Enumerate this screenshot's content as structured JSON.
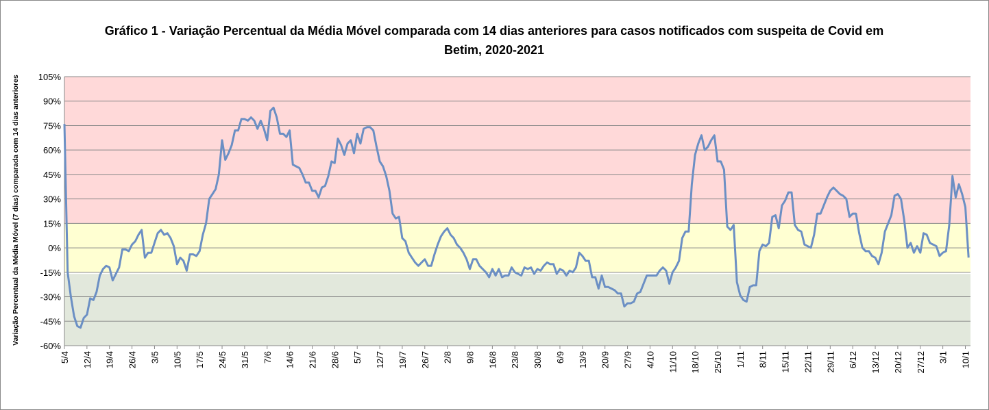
{
  "chart_data": {
    "type": "line",
    "title": "Gráfico 1 - Variação Percentual da Média Móvel comparada com 14 dias anteriores para casos notificados com suspeita de Covid em Betim, 2020-2021",
    "y_label": "Variação Percentual da Média Móvel (7 dias) comparada com 14 dias anteriores",
    "ylim": [
      -60,
      105
    ],
    "yticks": [
      {
        "value": -60,
        "label": "-60%"
      },
      {
        "value": -45,
        "label": "-45%"
      },
      {
        "value": -30,
        "label": "-30%"
      },
      {
        "value": -15,
        "label": "-15%"
      },
      {
        "value": 0,
        "label": "0%"
      },
      {
        "value": 15,
        "label": "15%"
      },
      {
        "value": 30,
        "label": "30%"
      },
      {
        "value": 45,
        "label": "45%"
      },
      {
        "value": 60,
        "label": "60%"
      },
      {
        "value": 75,
        "label": "75%"
      },
      {
        "value": 90,
        "label": "90%"
      },
      {
        "value": 105,
        "label": "105%"
      }
    ],
    "grid": true,
    "bands": [
      {
        "from": 15,
        "to": 105,
        "color": "#ffd9d9"
      },
      {
        "from": -15,
        "to": 15,
        "color": "#ffffd2"
      },
      {
        "from": -60,
        "to": -16,
        "color": "#e2e8dc"
      }
    ],
    "categories": [
      "5/4",
      null,
      null,
      null,
      null,
      null,
      null,
      "12/4",
      null,
      null,
      null,
      null,
      null,
      null,
      "19/4",
      null,
      null,
      null,
      null,
      null,
      null,
      "26/4",
      null,
      null,
      null,
      null,
      null,
      null,
      "3/5",
      null,
      null,
      null,
      null,
      null,
      null,
      "10/5",
      null,
      null,
      null,
      null,
      null,
      null,
      "17/5",
      null,
      null,
      null,
      null,
      null,
      null,
      "24/5",
      null,
      null,
      null,
      null,
      null,
      null,
      "31/5",
      null,
      null,
      null,
      null,
      null,
      null,
      "7/6",
      null,
      null,
      null,
      null,
      null,
      null,
      "14/6",
      null,
      null,
      null,
      null,
      null,
      null,
      "21/6",
      null,
      null,
      null,
      null,
      null,
      null,
      "28/6",
      null,
      null,
      null,
      null,
      null,
      null,
      "5/7",
      null,
      null,
      null,
      null,
      null,
      null,
      "12/7",
      null,
      null,
      null,
      null,
      null,
      null,
      "19/7",
      null,
      null,
      null,
      null,
      null,
      null,
      "26/7",
      null,
      null,
      null,
      null,
      null,
      null,
      "2/8",
      null,
      null,
      null,
      null,
      null,
      null,
      "9/8",
      null,
      null,
      null,
      null,
      null,
      null,
      "16/8",
      null,
      null,
      null,
      null,
      null,
      null,
      "23/8",
      null,
      null,
      null,
      null,
      null,
      null,
      "30/8",
      null,
      null,
      null,
      null,
      null,
      null,
      "6/9",
      null,
      null,
      null,
      null,
      null,
      null,
      "13/9",
      null,
      null,
      null,
      null,
      null,
      null,
      "20/9",
      null,
      null,
      null,
      null,
      null,
      null,
      "27/9",
      null,
      null,
      null,
      null,
      null,
      null,
      "4/10",
      null,
      null,
      null,
      null,
      null,
      null,
      "11/10",
      null,
      null,
      null,
      null,
      null,
      null,
      "18/10",
      null,
      null,
      null,
      null,
      null,
      null,
      "25/10",
      null,
      null,
      null,
      null,
      null,
      null,
      "1/11",
      null,
      null,
      null,
      null,
      null,
      null,
      "8/11",
      null,
      null,
      null,
      null,
      null,
      null,
      "15/11",
      null,
      null,
      null,
      null,
      null,
      null,
      "22/11",
      null,
      null,
      null,
      null,
      null,
      null,
      "29/11",
      null,
      null,
      null,
      null,
      null,
      null,
      "6/12",
      null,
      null,
      null,
      null,
      null,
      null,
      "13/12",
      null,
      null,
      null,
      null,
      null,
      null,
      "20/12",
      null,
      null,
      null,
      null,
      null,
      null,
      "27/12",
      null,
      null,
      null,
      null,
      null,
      null,
      "3/1",
      null,
      null,
      null,
      null,
      null,
      null,
      "10/1",
      null
    ],
    "series": [
      {
        "color": "#6b8fc4",
        "values": [
          76,
          -15,
          -30,
          -42,
          -48,
          -49,
          -43,
          -41,
          -31,
          -32,
          -27,
          -17,
          -13,
          -11,
          -12,
          -20,
          -16,
          -12,
          -1,
          -1,
          -2,
          2,
          4,
          8,
          11,
          -6,
          -3,
          -3,
          3,
          9,
          11,
          8,
          9,
          6,
          1,
          -10,
          -6,
          -8,
          -14,
          -4,
          -4,
          -5,
          -2,
          8,
          15,
          30,
          33,
          36,
          45,
          66,
          54,
          58,
          63,
          72,
          72,
          79,
          79,
          78,
          80,
          78,
          73,
          78,
          73,
          66,
          84,
          86,
          80,
          70,
          70,
          68,
          72,
          51,
          50,
          49,
          45,
          40,
          40,
          35,
          35,
          31,
          37,
          38,
          44,
          53,
          52,
          67,
          63,
          57,
          64,
          66,
          58,
          70,
          64,
          73,
          74,
          74,
          72,
          62,
          53,
          50,
          44,
          35,
          21,
          18,
          19,
          6,
          4,
          -3,
          -6,
          -9,
          -11,
          -9,
          -7,
          -11,
          -11,
          -4,
          2,
          7,
          10,
          12,
          8,
          6,
          2,
          0,
          -3,
          -7,
          -13,
          -7,
          -7,
          -11,
          -13,
          -15,
          -18,
          -13,
          -17,
          -13,
          -18,
          -17,
          -17,
          -12,
          -15,
          -16,
          -17,
          -12,
          -13,
          -12,
          -16,
          -13,
          -14,
          -11,
          -9,
          -10,
          -10,
          -16,
          -13,
          -14,
          -17,
          -14,
          -15,
          -12,
          -3,
          -5,
          -8,
          -8,
          -18,
          -18,
          -25,
          -17,
          -24,
          -24,
          -25,
          -26,
          -28,
          -28,
          -36,
          -34,
          -34,
          -33,
          -28,
          -27,
          -22,
          -17,
          -17,
          -17,
          -17,
          -14,
          -12,
          -14,
          -22,
          -15,
          -12,
          -8,
          6,
          10,
          10,
          39,
          57,
          64,
          69,
          60,
          62,
          66,
          69,
          53,
          53,
          48,
          13,
          11,
          14,
          -21,
          -29,
          -32,
          -33,
          -24,
          -23,
          -23,
          -2,
          2,
          1,
          3,
          19,
          20,
          12,
          26,
          29,
          34,
          34,
          14,
          11,
          10,
          2,
          1,
          0,
          8,
          21,
          21,
          26,
          31,
          35,
          37,
          35,
          33,
          32,
          30,
          19,
          21,
          21,
          9,
          0,
          -2,
          -2,
          -5,
          -6,
          -10,
          -3,
          10,
          15,
          20,
          32,
          33,
          30,
          17,
          0,
          3,
          -3,
          1,
          -3,
          9,
          8,
          3,
          2,
          1,
          -5,
          -3,
          -2,
          14,
          44,
          31,
          39,
          33,
          25,
          -6
        ]
      }
    ]
  }
}
